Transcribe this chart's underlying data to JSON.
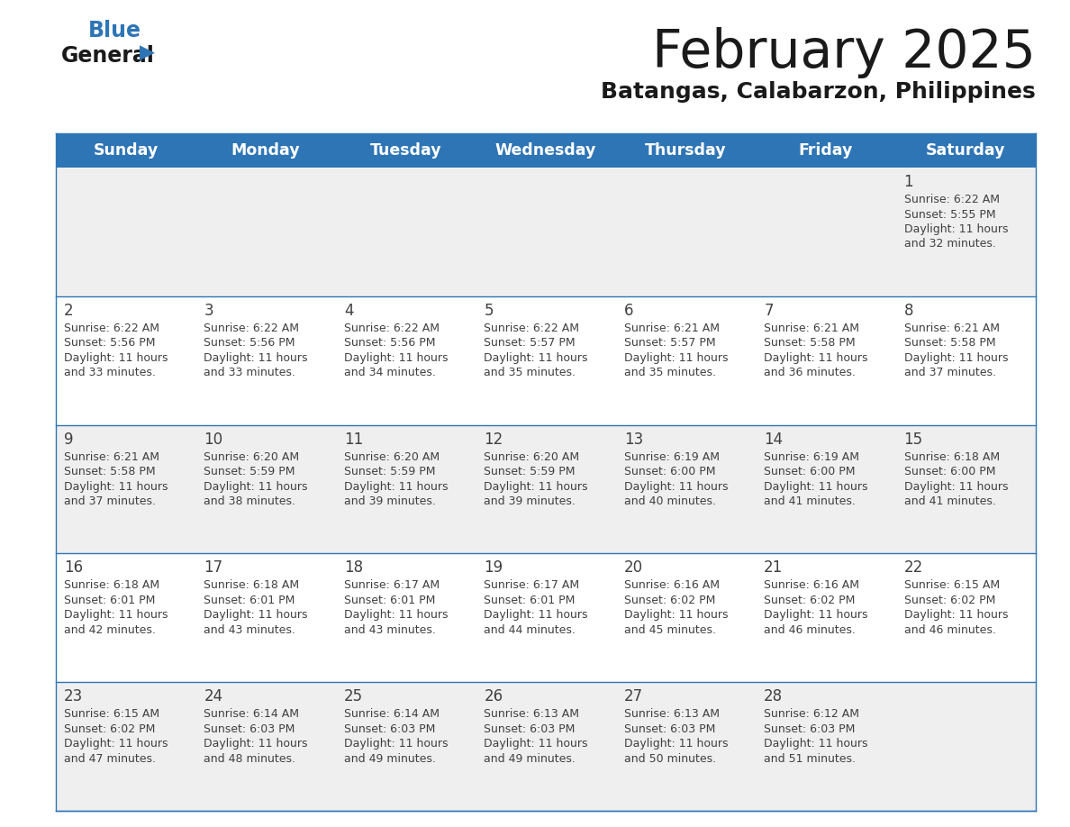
{
  "title": "February 2025",
  "subtitle": "Batangas, Calabarzon, Philippines",
  "header_bg": "#2e75b6",
  "header_text_color": "#ffffff",
  "day_names": [
    "Sunday",
    "Monday",
    "Tuesday",
    "Wednesday",
    "Thursday",
    "Friday",
    "Saturday"
  ],
  "cell_bg_odd": "#efefef",
  "cell_bg_even": "#ffffff",
  "divider_color": "#2e75b6",
  "text_color": "#404040",
  "calendar": [
    [
      null,
      null,
      null,
      null,
      null,
      null,
      {
        "day": 1,
        "sunrise": "6:22 AM",
        "sunset": "5:55 PM",
        "dl1": "Daylight: 11 hours",
        "dl2": "and 32 minutes."
      }
    ],
    [
      {
        "day": 2,
        "sunrise": "6:22 AM",
        "sunset": "5:56 PM",
        "dl1": "Daylight: 11 hours",
        "dl2": "and 33 minutes."
      },
      {
        "day": 3,
        "sunrise": "6:22 AM",
        "sunset": "5:56 PM",
        "dl1": "Daylight: 11 hours",
        "dl2": "and 33 minutes."
      },
      {
        "day": 4,
        "sunrise": "6:22 AM",
        "sunset": "5:56 PM",
        "dl1": "Daylight: 11 hours",
        "dl2": "and 34 minutes."
      },
      {
        "day": 5,
        "sunrise": "6:22 AM",
        "sunset": "5:57 PM",
        "dl1": "Daylight: 11 hours",
        "dl2": "and 35 minutes."
      },
      {
        "day": 6,
        "sunrise": "6:21 AM",
        "sunset": "5:57 PM",
        "dl1": "Daylight: 11 hours",
        "dl2": "and 35 minutes."
      },
      {
        "day": 7,
        "sunrise": "6:21 AM",
        "sunset": "5:58 PM",
        "dl1": "Daylight: 11 hours",
        "dl2": "and 36 minutes."
      },
      {
        "day": 8,
        "sunrise": "6:21 AM",
        "sunset": "5:58 PM",
        "dl1": "Daylight: 11 hours",
        "dl2": "and 37 minutes."
      }
    ],
    [
      {
        "day": 9,
        "sunrise": "6:21 AM",
        "sunset": "5:58 PM",
        "dl1": "Daylight: 11 hours",
        "dl2": "and 37 minutes."
      },
      {
        "day": 10,
        "sunrise": "6:20 AM",
        "sunset": "5:59 PM",
        "dl1": "Daylight: 11 hours",
        "dl2": "and 38 minutes."
      },
      {
        "day": 11,
        "sunrise": "6:20 AM",
        "sunset": "5:59 PM",
        "dl1": "Daylight: 11 hours",
        "dl2": "and 39 minutes."
      },
      {
        "day": 12,
        "sunrise": "6:20 AM",
        "sunset": "5:59 PM",
        "dl1": "Daylight: 11 hours",
        "dl2": "and 39 minutes."
      },
      {
        "day": 13,
        "sunrise": "6:19 AM",
        "sunset": "6:00 PM",
        "dl1": "Daylight: 11 hours",
        "dl2": "and 40 minutes."
      },
      {
        "day": 14,
        "sunrise": "6:19 AM",
        "sunset": "6:00 PM",
        "dl1": "Daylight: 11 hours",
        "dl2": "and 41 minutes."
      },
      {
        "day": 15,
        "sunrise": "6:18 AM",
        "sunset": "6:00 PM",
        "dl1": "Daylight: 11 hours",
        "dl2": "and 41 minutes."
      }
    ],
    [
      {
        "day": 16,
        "sunrise": "6:18 AM",
        "sunset": "6:01 PM",
        "dl1": "Daylight: 11 hours",
        "dl2": "and 42 minutes."
      },
      {
        "day": 17,
        "sunrise": "6:18 AM",
        "sunset": "6:01 PM",
        "dl1": "Daylight: 11 hours",
        "dl2": "and 43 minutes."
      },
      {
        "day": 18,
        "sunrise": "6:17 AM",
        "sunset": "6:01 PM",
        "dl1": "Daylight: 11 hours",
        "dl2": "and 43 minutes."
      },
      {
        "day": 19,
        "sunrise": "6:17 AM",
        "sunset": "6:01 PM",
        "dl1": "Daylight: 11 hours",
        "dl2": "and 44 minutes."
      },
      {
        "day": 20,
        "sunrise": "6:16 AM",
        "sunset": "6:02 PM",
        "dl1": "Daylight: 11 hours",
        "dl2": "and 45 minutes."
      },
      {
        "day": 21,
        "sunrise": "6:16 AM",
        "sunset": "6:02 PM",
        "dl1": "Daylight: 11 hours",
        "dl2": "and 46 minutes."
      },
      {
        "day": 22,
        "sunrise": "6:15 AM",
        "sunset": "6:02 PM",
        "dl1": "Daylight: 11 hours",
        "dl2": "and 46 minutes."
      }
    ],
    [
      {
        "day": 23,
        "sunrise": "6:15 AM",
        "sunset": "6:02 PM",
        "dl1": "Daylight: 11 hours",
        "dl2": "and 47 minutes."
      },
      {
        "day": 24,
        "sunrise": "6:14 AM",
        "sunset": "6:03 PM",
        "dl1": "Daylight: 11 hours",
        "dl2": "and 48 minutes."
      },
      {
        "day": 25,
        "sunrise": "6:14 AM",
        "sunset": "6:03 PM",
        "dl1": "Daylight: 11 hours",
        "dl2": "and 49 minutes."
      },
      {
        "day": 26,
        "sunrise": "6:13 AM",
        "sunset": "6:03 PM",
        "dl1": "Daylight: 11 hours",
        "dl2": "and 49 minutes."
      },
      {
        "day": 27,
        "sunrise": "6:13 AM",
        "sunset": "6:03 PM",
        "dl1": "Daylight: 11 hours",
        "dl2": "and 50 minutes."
      },
      {
        "day": 28,
        "sunrise": "6:12 AM",
        "sunset": "6:03 PM",
        "dl1": "Daylight: 11 hours",
        "dl2": "and 51 minutes."
      },
      null
    ]
  ],
  "fig_width": 11.88,
  "fig_height": 9.18,
  "dpi": 100
}
